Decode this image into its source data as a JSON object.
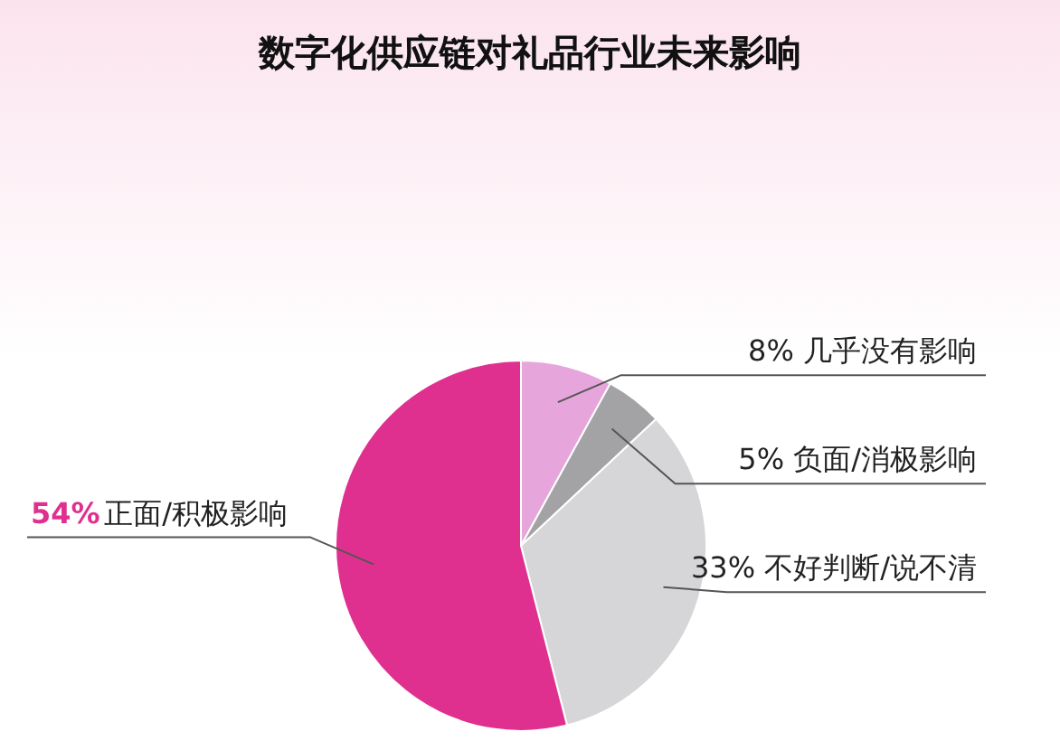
{
  "chart_data": {
    "type": "pie",
    "title": "数字化供应链对礼品行业未来影响",
    "categories": [
      "几乎没有影响",
      "负面/消极影响",
      "不好判断/说不清",
      "正面/积极影响"
    ],
    "values": [
      8,
      5,
      33,
      54
    ],
    "value_labels": [
      "8%",
      "5%",
      "33%",
      "54%"
    ],
    "colors": [
      "#e6a6dc",
      "#a3a3a5",
      "#d6d6d8",
      "#e0308f"
    ],
    "legend": false
  }
}
